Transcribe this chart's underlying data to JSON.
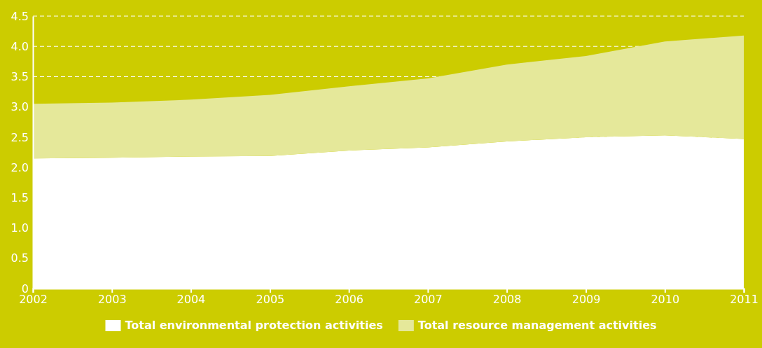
{
  "chart_data": {
    "type": "area",
    "stacked": true,
    "x": [
      "2002",
      "2003",
      "2004",
      "2005",
      "2006",
      "2007",
      "2008",
      "2009",
      "2010",
      "2011"
    ],
    "series": [
      {
        "name": "Total environmental protection activities",
        "color": "#ffffff",
        "values": [
          2.15,
          2.16,
          2.18,
          2.19,
          2.28,
          2.33,
          2.43,
          2.5,
          2.53,
          2.47
        ]
      },
      {
        "name": "Total resource management activities",
        "color": "#e5e89a",
        "values": [
          0.9,
          0.91,
          0.94,
          1.01,
          1.06,
          1.14,
          1.27,
          1.34,
          1.55,
          1.71
        ]
      }
    ],
    "xlim": [
      "2002",
      "2011"
    ],
    "xticks": [
      {
        "value": "2002",
        "label": "2002"
      },
      {
        "value": "2003",
        "label": "2003"
      },
      {
        "value": "2004",
        "label": "2004"
      },
      {
        "value": "2005",
        "label": "2005"
      },
      {
        "value": "2006",
        "label": "2006"
      },
      {
        "value": "2007",
        "label": "2007"
      },
      {
        "value": "2008",
        "label": "2008"
      },
      {
        "value": "2009",
        "label": "2009"
      },
      {
        "value": "2010",
        "label": "2010"
      },
      {
        "value": "2011",
        "label": "2011"
      }
    ],
    "ylim": [
      0,
      4.5
    ],
    "yticks": [
      0,
      {
        "value": 0.5,
        "label": "0.5"
      },
      {
        "value": 1,
        "label": "1.0"
      },
      {
        "value": 1.5,
        "label": "1.5"
      },
      {
        "value": 2,
        "label": "2.0"
      },
      {
        "value": 2.5,
        "label": "2.5"
      },
      {
        "value": 3,
        "label": "3.0"
      },
      {
        "value": 3.5,
        "label": "3.5"
      },
      {
        "value": 4,
        "label": "4.0"
      },
      {
        "value": 4.5,
        "label": "4.5"
      }
    ],
    "grid": "y",
    "legend": "bottom"
  }
}
